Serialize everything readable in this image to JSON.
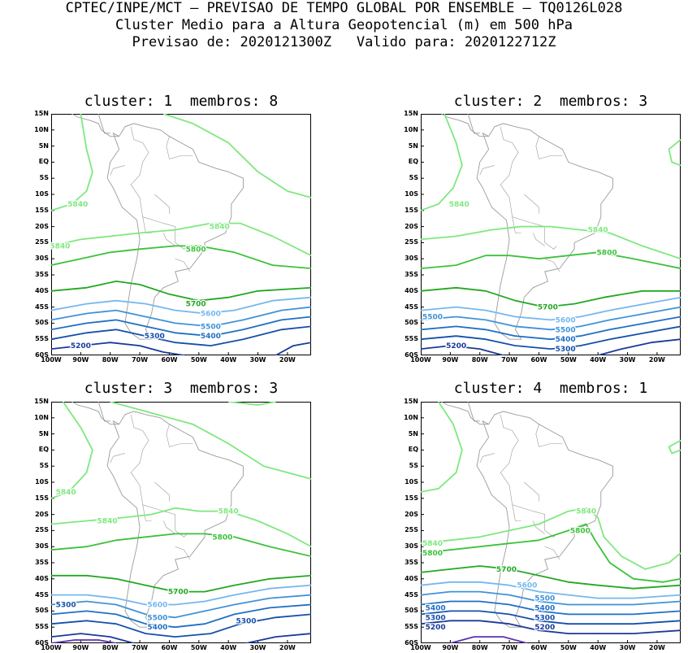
{
  "header": {
    "line1": "CPTEC/INPE/MCT – PREVISAO DE TEMPO GLOBAL POR ENSEMBLE – TQ0126L028",
    "line2": "Cluster Medio para a Altura Geopotencial (m) em 500 hPa",
    "line3": "Previsao de: 2020121300Z   Valido para: 2020122712Z"
  },
  "axes": {
    "lat_labels": [
      "15N",
      "10N",
      "5N",
      "EQ",
      "5S",
      "10S",
      "15S",
      "20S",
      "25S",
      "30S",
      "35S",
      "40S",
      "45S",
      "50S",
      "55S",
      "60S"
    ],
    "lon_labels": [
      "100W",
      "90W",
      "80W",
      "70W",
      "60W",
      "50W",
      "40W",
      "30W",
      "20W"
    ]
  },
  "colors": {
    "c5840": "#7fe87f",
    "c5800": "#3cc23c",
    "c5700": "#22a822",
    "c5600": "#74b8f0",
    "c5500": "#3f93d9",
    "c5400": "#1f6fc4",
    "c5300": "#1450aa",
    "c5200": "#1a3a98",
    "c5100": "#5a32b0",
    "coast": "#9a9a9a"
  },
  "panels": [
    {
      "title": "cluster: 1  membros: 8",
      "labels": [
        {
          "text": "5840",
          "lon": -91,
          "lat": -13,
          "c": "c5840"
        },
        {
          "text": "5840",
          "lon": -43,
          "lat": -20,
          "c": "c5840"
        },
        {
          "text": "5840",
          "lon": -97,
          "lat": -26,
          "c": "c5840"
        },
        {
          "text": "5800",
          "lon": -51,
          "lat": -27,
          "c": "c5800"
        },
        {
          "text": "5700",
          "lon": -51,
          "lat": -44,
          "c": "c5700"
        },
        {
          "text": "5600",
          "lon": -46,
          "lat": -47,
          "c": "c5600"
        },
        {
          "text": "5500",
          "lon": -46,
          "lat": -51,
          "c": "c5500"
        },
        {
          "text": "5400",
          "lon": -46,
          "lat": -54,
          "c": "c5400"
        },
        {
          "text": "5300",
          "lon": -65,
          "lat": -54,
          "c": "c5300"
        },
        {
          "text": "5200",
          "lon": -90,
          "lat": -57,
          "c": "c5200"
        }
      ]
    },
    {
      "title": "cluster: 2  membros: 3",
      "labels": [
        {
          "text": "5840",
          "lon": -87,
          "lat": -13,
          "c": "c5840"
        },
        {
          "text": "5840",
          "lon": -40,
          "lat": -21,
          "c": "c5840"
        },
        {
          "text": "5800",
          "lon": -37,
          "lat": -28,
          "c": "c5800"
        },
        {
          "text": "5700",
          "lon": -57,
          "lat": -45,
          "c": "c5700"
        },
        {
          "text": "5600",
          "lon": -51,
          "lat": -49,
          "c": "c5600"
        },
        {
          "text": "5500",
          "lon": -51,
          "lat": -52,
          "c": "c5500"
        },
        {
          "text": "5500",
          "lon": -96,
          "lat": -48,
          "c": "c5500"
        },
        {
          "text": "5400",
          "lon": -51,
          "lat": -55,
          "c": "c5400"
        },
        {
          "text": "5300",
          "lon": -51,
          "lat": -58,
          "c": "c5300"
        },
        {
          "text": "5200",
          "lon": -88,
          "lat": -57,
          "c": "c5200"
        }
      ]
    },
    {
      "title": "cluster: 3  membros: 3",
      "labels": [
        {
          "text": "5840",
          "lon": -95,
          "lat": -13,
          "c": "c5840"
        },
        {
          "text": "5840",
          "lon": -81,
          "lat": -22,
          "c": "c5840"
        },
        {
          "text": "5840",
          "lon": -40,
          "lat": -19,
          "c": "c5840"
        },
        {
          "text": "5800",
          "lon": -42,
          "lat": -27,
          "c": "c5800"
        },
        {
          "text": "5700",
          "lon": -57,
          "lat": -44,
          "c": "c5700"
        },
        {
          "text": "5600",
          "lon": -64,
          "lat": -48,
          "c": "c5600"
        },
        {
          "text": "5500",
          "lon": -64,
          "lat": -52,
          "c": "c5500"
        },
        {
          "text": "5400",
          "lon": -64,
          "lat": -55,
          "c": "c5400"
        },
        {
          "text": "5300",
          "lon": -95,
          "lat": -48,
          "c": "c5300"
        },
        {
          "text": "5300",
          "lon": -34,
          "lat": -53,
          "c": "c5300"
        }
      ]
    },
    {
      "title": "cluster: 4  membros: 1",
      "labels": [
        {
          "text": "5840",
          "lon": -44,
          "lat": -19,
          "c": "c5840"
        },
        {
          "text": "5840",
          "lon": -96,
          "lat": -29,
          "c": "c5840"
        },
        {
          "text": "5800",
          "lon": -96,
          "lat": -32,
          "c": "c5800"
        },
        {
          "text": "5800",
          "lon": -46,
          "lat": -25,
          "c": "c5800"
        },
        {
          "text": "5700",
          "lon": -71,
          "lat": -37,
          "c": "c5700"
        },
        {
          "text": "5600",
          "lon": -64,
          "lat": -42,
          "c": "c5600"
        },
        {
          "text": "5500",
          "lon": -58,
          "lat": -46,
          "c": "c5500"
        },
        {
          "text": "5400",
          "lon": -58,
          "lat": -49,
          "c": "c5400"
        },
        {
          "text": "5400",
          "lon": -95,
          "lat": -49,
          "c": "c5400"
        },
        {
          "text": "5300",
          "lon": -58,
          "lat": -52,
          "c": "c5300"
        },
        {
          "text": "5300",
          "lon": -95,
          "lat": -52,
          "c": "c5300"
        },
        {
          "text": "5200",
          "lon": -58,
          "lat": -55,
          "c": "c5200"
        },
        {
          "text": "5200",
          "lon": -95,
          "lat": -55,
          "c": "c5200"
        }
      ]
    }
  ]
}
